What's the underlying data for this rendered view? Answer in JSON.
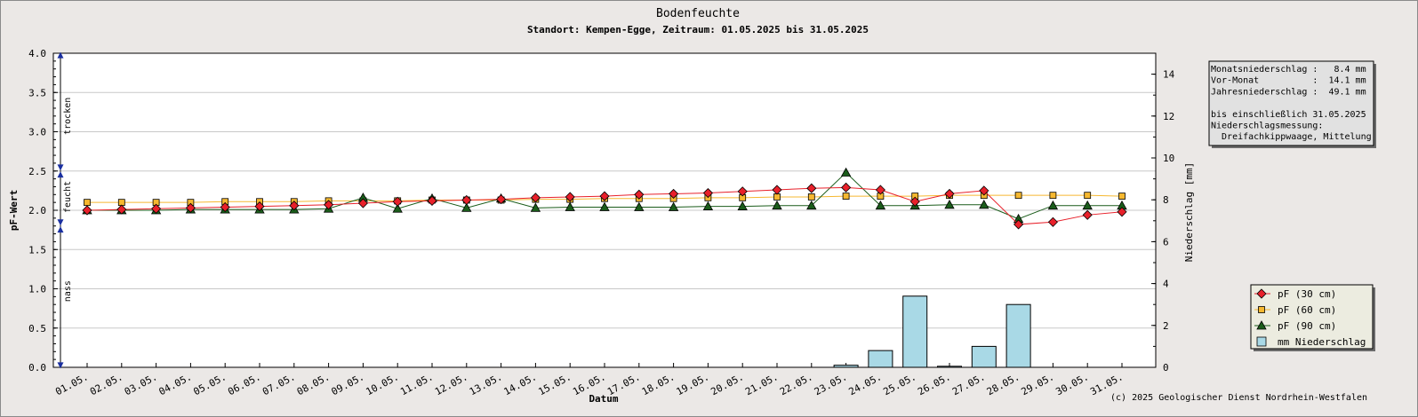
{
  "chart_data": {
    "type": "line",
    "title": "Bodenfeuchte",
    "subtitle": "Standort: Kempen-Egge, Zeitraum: 01.05.2025 bis 31.05.2025",
    "xlabel": "Datum",
    "ylabel": "pF-Wert",
    "y2label": "Niederschlag [mm]",
    "ylim": [
      0,
      4
    ],
    "y2lim": [
      0,
      15
    ],
    "yticks": [
      "0.0",
      "0.5",
      "1.0",
      "1.5",
      "2.0",
      "2.5",
      "3.0",
      "3.5",
      "4.0"
    ],
    "y2ticks": [
      "0",
      "2",
      "4",
      "6",
      "8",
      "10",
      "12",
      "14"
    ],
    "grid": true,
    "categories": [
      "01.05.",
      "02.05.",
      "03.05.",
      "04.05.",
      "05.05.",
      "06.05.",
      "07.05.",
      "08.05.",
      "09.05.",
      "10.05.",
      "11.05.",
      "12.05.",
      "13.05.",
      "14.05.",
      "15.05.",
      "16.05.",
      "17.05.",
      "18.05.",
      "19.05.",
      "20.05.",
      "21.05.",
      "22.05.",
      "23.05.",
      "24.05.",
      "25.05.",
      "26.05.",
      "27.05.",
      "28.05.",
      "29.05.",
      "30.05.",
      "31.05."
    ],
    "series": [
      {
        "name": "pF (30 cm)",
        "color": "#e8202a",
        "marker": "diamond",
        "values": [
          2.0,
          2.01,
          2.02,
          2.03,
          2.04,
          2.05,
          2.06,
          2.07,
          2.09,
          2.11,
          2.12,
          2.13,
          2.14,
          2.16,
          2.17,
          2.18,
          2.2,
          2.21,
          2.22,
          2.24,
          2.26,
          2.28,
          2.29,
          2.26,
          2.11,
          2.21,
          2.25,
          1.82,
          1.85,
          1.94,
          1.98
        ]
      },
      {
        "name": "pF (60 cm)",
        "color": "#f6b830",
        "marker": "square",
        "values": [
          2.1,
          2.1,
          2.1,
          2.1,
          2.11,
          2.11,
          2.11,
          2.12,
          2.12,
          2.12,
          2.13,
          2.13,
          2.13,
          2.14,
          2.14,
          2.15,
          2.15,
          2.15,
          2.16,
          2.16,
          2.17,
          2.17,
          2.18,
          2.18,
          2.18,
          2.19,
          2.19,
          2.19,
          2.19,
          2.19,
          2.18
        ]
      },
      {
        "name": "pF (90 cm)",
        "color": "#1a5c1a",
        "marker": "triangle",
        "values": [
          2.0,
          2.0,
          2.0,
          2.01,
          2.01,
          2.01,
          2.01,
          2.02,
          2.16,
          2.02,
          2.15,
          2.03,
          2.15,
          2.03,
          2.04,
          2.04,
          2.04,
          2.04,
          2.05,
          2.05,
          2.06,
          2.06,
          2.48,
          2.06,
          2.06,
          2.07,
          2.07,
          1.89,
          2.06,
          2.06,
          2.06
        ]
      },
      {
        "name": "mm  Niederschlag",
        "color": "#a9d9e6",
        "type": "bar",
        "axis": "right",
        "values": [
          0,
          0,
          0,
          0,
          0,
          0,
          0,
          0,
          0,
          0,
          0,
          0,
          0,
          0,
          0,
          0,
          0,
          0,
          0,
          0,
          0,
          0,
          0.1,
          0.8,
          3.4,
          0.05,
          1.0,
          3.0,
          0,
          0,
          0
        ]
      }
    ],
    "zones": [
      "trocken",
      "feucht",
      "nass"
    ],
    "legend_position": "bottom-right"
  },
  "info_box": {
    "lines": [
      "Monatsniederschlag :   8.4 mm",
      "Vor-Monat          :  14.1 mm",
      "Jahresniederschlag :  49.1 mm",
      "",
      "bis einschließlich 31.05.2025",
      "Niederschlagsmessung:",
      "  Dreifachkippwaage, Mittelung"
    ]
  },
  "copyright": "(c) 2025 Geologischer Dienst Nordrhein-Westfalen"
}
